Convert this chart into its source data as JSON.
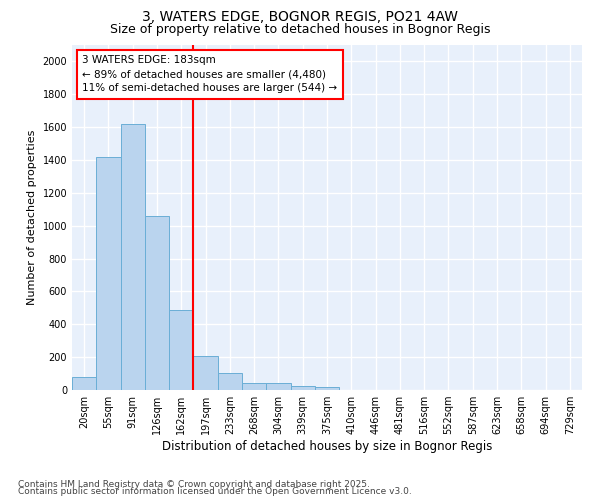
{
  "title": "3, WATERS EDGE, BOGNOR REGIS, PO21 4AW",
  "subtitle": "Size of property relative to detached houses in Bognor Regis",
  "xlabel": "Distribution of detached houses by size in Bognor Regis",
  "ylabel": "Number of detached properties",
  "categories": [
    "20sqm",
    "55sqm",
    "91sqm",
    "126sqm",
    "162sqm",
    "197sqm",
    "233sqm",
    "268sqm",
    "304sqm",
    "339sqm",
    "375sqm",
    "410sqm",
    "446sqm",
    "481sqm",
    "516sqm",
    "552sqm",
    "587sqm",
    "623sqm",
    "658sqm",
    "694sqm",
    "729sqm"
  ],
  "values": [
    80,
    1420,
    1620,
    1060,
    490,
    205,
    105,
    45,
    40,
    25,
    20,
    0,
    0,
    0,
    0,
    0,
    0,
    0,
    0,
    0,
    0
  ],
  "bar_color": "#bad4ee",
  "bar_edge_color": "#6aaed6",
  "vline_color": "red",
  "annotation_text": "3 WATERS EDGE: 183sqm\n← 89% of detached houses are smaller (4,480)\n11% of semi-detached houses are larger (544) →",
  "annotation_box_color": "red",
  "annotation_box_facecolor": "white",
  "footer_line1": "Contains HM Land Registry data © Crown copyright and database right 2025.",
  "footer_line2": "Contains public sector information licensed under the Open Government Licence v3.0.",
  "ylim": [
    0,
    2100
  ],
  "yticks": [
    0,
    200,
    400,
    600,
    800,
    1000,
    1200,
    1400,
    1600,
    1800,
    2000
  ],
  "background_color": "#e8f0fb",
  "grid_color": "#ffffff",
  "title_fontsize": 10,
  "subtitle_fontsize": 9,
  "tick_fontsize": 7,
  "ylabel_fontsize": 8,
  "xlabel_fontsize": 8.5,
  "footer_fontsize": 6.5,
  "annotation_fontsize": 7.5
}
